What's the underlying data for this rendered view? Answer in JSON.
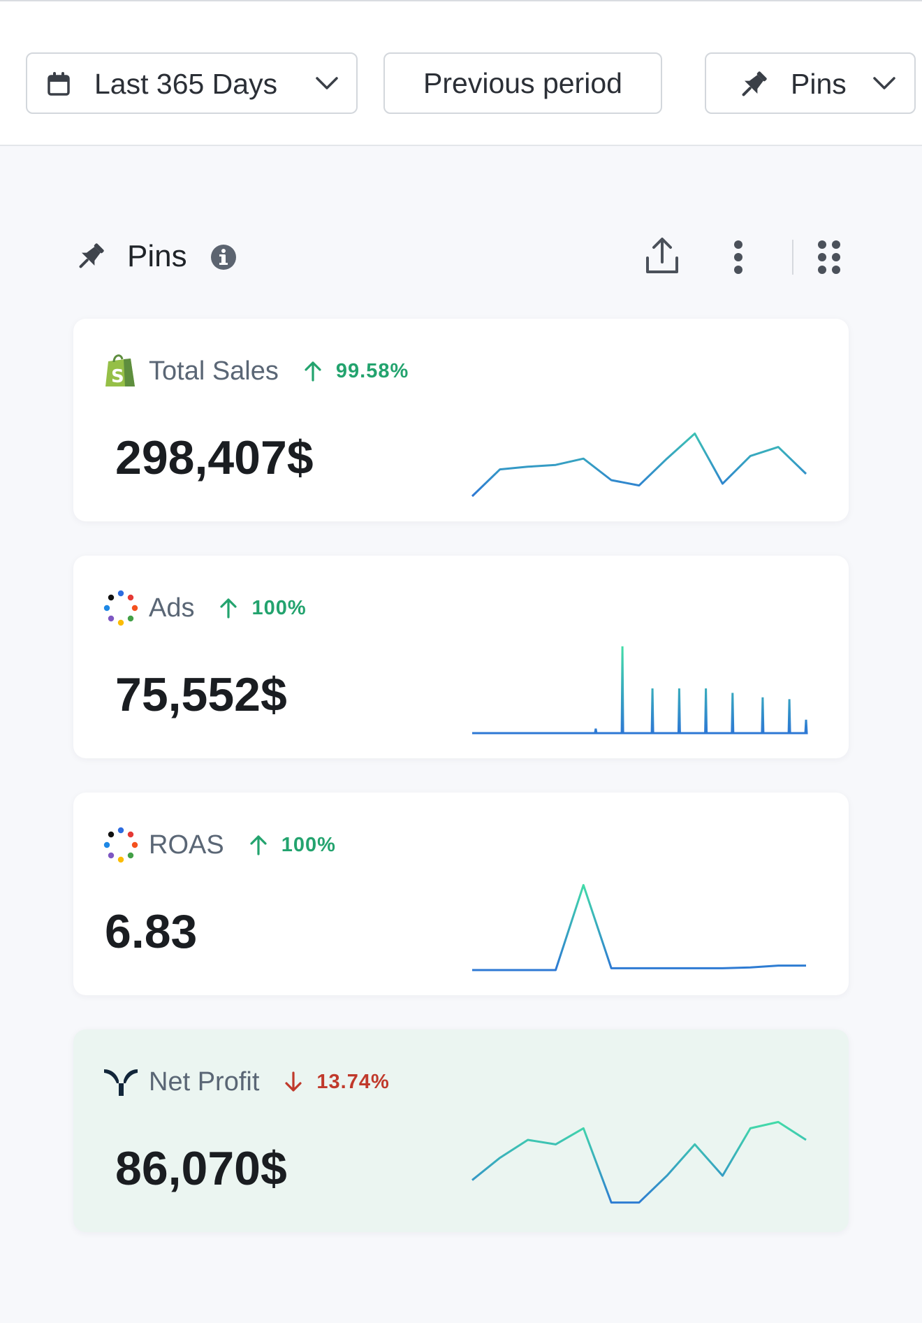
{
  "toolbar": {
    "date_range_label": "Last 365 Days",
    "compare_label": "Previous period",
    "collection_label": "Pins"
  },
  "section": {
    "title": "Pins"
  },
  "cards": [
    {
      "label": "Total Sales",
      "source_icon": "shopify-icon",
      "change": "99.58%",
      "direction": "up",
      "value": "298,407$",
      "trend": [
        0,
        0.3,
        0.33,
        0.35,
        0.42,
        0.18,
        0.12,
        0.42,
        0.7,
        0.14,
        0.45,
        0.55,
        0.25
      ]
    },
    {
      "label": "Ads",
      "source_icon": "ads-dots-icon",
      "change": "100%",
      "direction": "up",
      "value": "75,552$",
      "trend_spikes": [
        {
          "x": 0.37,
          "h": 0.05
        },
        {
          "x": 0.45,
          "h": 0.97
        },
        {
          "x": 0.54,
          "h": 0.5
        },
        {
          "x": 0.62,
          "h": 0.5
        },
        {
          "x": 0.7,
          "h": 0.5
        },
        {
          "x": 0.78,
          "h": 0.45
        },
        {
          "x": 0.87,
          "h": 0.4
        },
        {
          "x": 0.95,
          "h": 0.38
        },
        {
          "x": 1.0,
          "h": 0.15
        }
      ]
    },
    {
      "label": "ROAS",
      "source_icon": "ads-dots-icon",
      "change": "100%",
      "direction": "up",
      "value": "6.83",
      "trend": [
        0,
        0,
        0,
        0,
        0.95,
        0.02,
        0.02,
        0.02,
        0.02,
        0.02,
        0.03,
        0.05,
        0.05
      ]
    },
    {
      "label": "Net Profit",
      "source_icon": "brand-logo-icon",
      "change": "13.74%",
      "direction": "down",
      "value": "86,070$",
      "trend": [
        0.3,
        0.55,
        0.75,
        0.7,
        0.88,
        0.05,
        0.05,
        0.35,
        0.7,
        0.35,
        0.88,
        0.95,
        0.75
      ]
    }
  ],
  "colors": {
    "up": "#23a36e",
    "down": "#c0392b",
    "spark_start": "#2d78d4",
    "spark_end": "#44e0a6"
  }
}
